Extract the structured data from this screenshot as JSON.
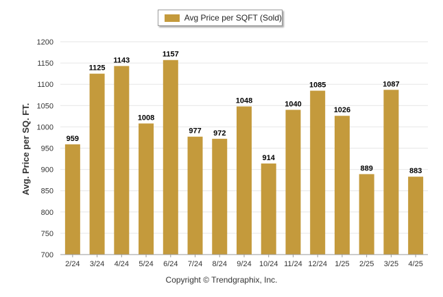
{
  "colors": {
    "bar": "#c49a3c",
    "grid": "#e6e6e6",
    "axis": "#999999",
    "text": "#333333"
  },
  "legend": {
    "label": "Avg Price per SQFT (Sold)",
    "placement": "top-center"
  },
  "footer": {
    "copyright": "Copyright © Trendgraphix, Inc."
  },
  "chart_data": {
    "type": "bar",
    "title": "",
    "xlabel": "",
    "ylabel": "Avg. Price per SQ. FT.",
    "categories": [
      "2/24",
      "3/24",
      "4/24",
      "5/24",
      "6/24",
      "7/24",
      "8/24",
      "9/24",
      "10/24",
      "11/24",
      "12/24",
      "1/25",
      "2/25",
      "3/25",
      "4/25"
    ],
    "series": [
      {
        "name": "Avg Price per SQFT (Sold)",
        "values": [
          959,
          1125,
          1143,
          1008,
          1157,
          977,
          972,
          1048,
          914,
          1040,
          1085,
          1026,
          889,
          1087,
          883
        ]
      }
    ],
    "ylim": [
      700,
      1200
    ],
    "yticks": [
      700,
      750,
      800,
      850,
      900,
      950,
      1000,
      1050,
      1100,
      1150,
      1200
    ],
    "grid": true,
    "data_labels": true
  }
}
